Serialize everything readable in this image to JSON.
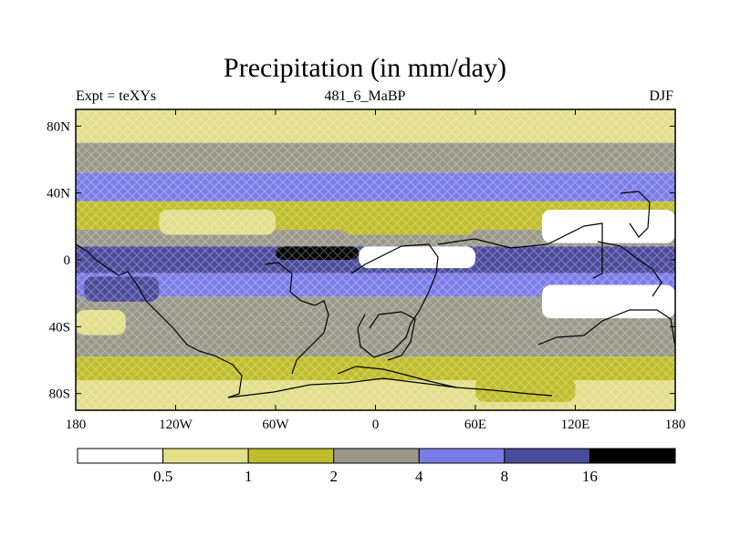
{
  "header": {
    "title": "Precipitation (in mm/day)",
    "left": "Expt = teXYs",
    "center": "481_6_MaBP",
    "right": "DJF"
  },
  "colors": {
    "levels": [
      "#ffffff",
      "#e1df8a",
      "#bfbd2a",
      "#99988a",
      "#7b7be8",
      "#4b4b9b",
      "#000000"
    ]
  },
  "chart_data": {
    "type": "heatmap",
    "title": "Precipitation (in mm/day)",
    "xlabel": "",
    "ylabel": "",
    "xlim": [
      -180,
      180
    ],
    "ylim": [
      -90,
      90
    ],
    "x_ticks": [
      {
        "value": -180,
        "label": "180"
      },
      {
        "value": -120,
        "label": "120W"
      },
      {
        "value": -60,
        "label": "60W"
      },
      {
        "value": 0,
        "label": "0"
      },
      {
        "value": 60,
        "label": "60E"
      },
      {
        "value": 120,
        "label": "120E"
      },
      {
        "value": 180,
        "label": "180"
      }
    ],
    "y_ticks": [
      {
        "value": 80,
        "label": "80N"
      },
      {
        "value": 40,
        "label": "40N"
      },
      {
        "value": 0,
        "label": "0"
      },
      {
        "value": -40,
        "label": "40S"
      },
      {
        "value": -80,
        "label": "80S"
      }
    ],
    "colorbar": {
      "boundaries": [
        "0.5",
        "1",
        "2",
        "4",
        "8",
        "16"
      ],
      "labeled": [
        "0.5",
        "1",
        "2",
        "4",
        "8",
        "16"
      ]
    },
    "zonal_bands": [
      {
        "lat": [
          70,
          90
        ],
        "level": 1
      },
      {
        "lat": [
          52,
          70
        ],
        "level": 3
      },
      {
        "lat": [
          35,
          52
        ],
        "level": 4
      },
      {
        "lat": [
          18,
          35
        ],
        "level": 2
      },
      {
        "lat": [
          8,
          18
        ],
        "level": 3
      },
      {
        "lat": [
          -8,
          8
        ],
        "level": 5
      },
      {
        "lat": [
          -22,
          -8
        ],
        "level": 4
      },
      {
        "lat": [
          -40,
          -22
        ],
        "level": 3
      },
      {
        "lat": [
          -58,
          -40
        ],
        "level": 3
      },
      {
        "lat": [
          -72,
          -58
        ],
        "level": 2
      },
      {
        "lat": [
          -90,
          -72
        ],
        "level": 1
      }
    ],
    "regions": [
      {
        "lon": [
          100,
          180
        ],
        "lat": [
          10,
          30
        ],
        "level": 0
      },
      {
        "lon": [
          100,
          180
        ],
        "lat": [
          -35,
          -15
        ],
        "level": 0
      },
      {
        "lon": [
          -10,
          60
        ],
        "lat": [
          -5,
          8
        ],
        "level": 0
      },
      {
        "lon": [
          140,
          170
        ],
        "lat": [
          -5,
          5
        ],
        "level": 5
      },
      {
        "lon": [
          -175,
          -130
        ],
        "lat": [
          -25,
          -10
        ],
        "level": 5
      },
      {
        "lon": [
          -60,
          -10
        ],
        "lat": [
          0,
          8
        ],
        "level": 6
      },
      {
        "lon": [
          -20,
          60
        ],
        "lat": [
          15,
          30
        ],
        "level": 2
      },
      {
        "lon": [
          -130,
          -60
        ],
        "lat": [
          15,
          30
        ],
        "level": 1
      },
      {
        "lon": [
          -180,
          -150
        ],
        "lat": [
          -45,
          -30
        ],
        "level": 1
      },
      {
        "lon": [
          60,
          120
        ],
        "lat": [
          -85,
          -70
        ],
        "level": 2
      }
    ]
  }
}
